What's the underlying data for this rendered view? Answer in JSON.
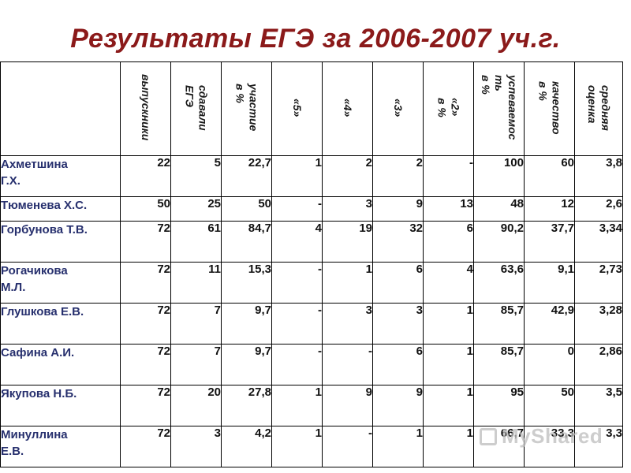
{
  "title": "Результаты ЕГЭ за 2006-2007 уч.г.",
  "headers": [
    "выпускники",
    "сдавали\nЕГЭ",
    "участие\nв %",
    "«5»",
    "«4»",
    "«3»",
    "«2»\nв %",
    "успеваемос\nть\nв %",
    "качество\nв %",
    "средняя\nоценка"
  ],
  "rows": [
    {
      "name": "Ахметшина\nГ.Х.",
      "cells": [
        "22",
        "5",
        "22,7",
        "1",
        "2",
        "2",
        "-",
        "100",
        "60",
        "3,8"
      ]
    },
    {
      "name": "Тюменева Х.С.",
      "cells": [
        "50",
        "25",
        "50",
        "-",
        "3",
        "9",
        "13",
        "48",
        "12",
        "2,6"
      ]
    },
    {
      "name": "Горбунова Т.В.",
      "cells": [
        "72",
        "61",
        "84,7",
        "4",
        "19",
        "32",
        "6",
        "90,2",
        "37,7",
        "3,34"
      ]
    },
    {
      "name": "Рогачикова\nМ.Л.",
      "cells": [
        "72",
        "11",
        "15,3",
        "-",
        "1",
        "6",
        "4",
        "63,6",
        "9,1",
        "2,73"
      ]
    },
    {
      "name": "Глушкова Е.В.",
      "cells": [
        "72",
        "7",
        "9,7",
        "-",
        "3",
        "3",
        "1",
        "85,7",
        "42,9",
        "3,28"
      ]
    },
    {
      "name": "Сафина А.И.",
      "cells": [
        "72",
        "7",
        "9,7",
        "-",
        "-",
        "6",
        "1",
        "85,7",
        "0",
        "2,86"
      ]
    },
    {
      "name": "Якупова Н.Б.",
      "cells": [
        "72",
        "20",
        "27,8",
        "1",
        "9",
        "9",
        "1",
        "95",
        "50",
        "3,5"
      ]
    },
    {
      "name": "Минуллина\nЕ.В.",
      "cells": [
        "72",
        "3",
        "4,2",
        "1",
        "-",
        "1",
        "1",
        "66,7",
        "33,3",
        "3,3"
      ]
    }
  ],
  "watermark": "MyShared"
}
